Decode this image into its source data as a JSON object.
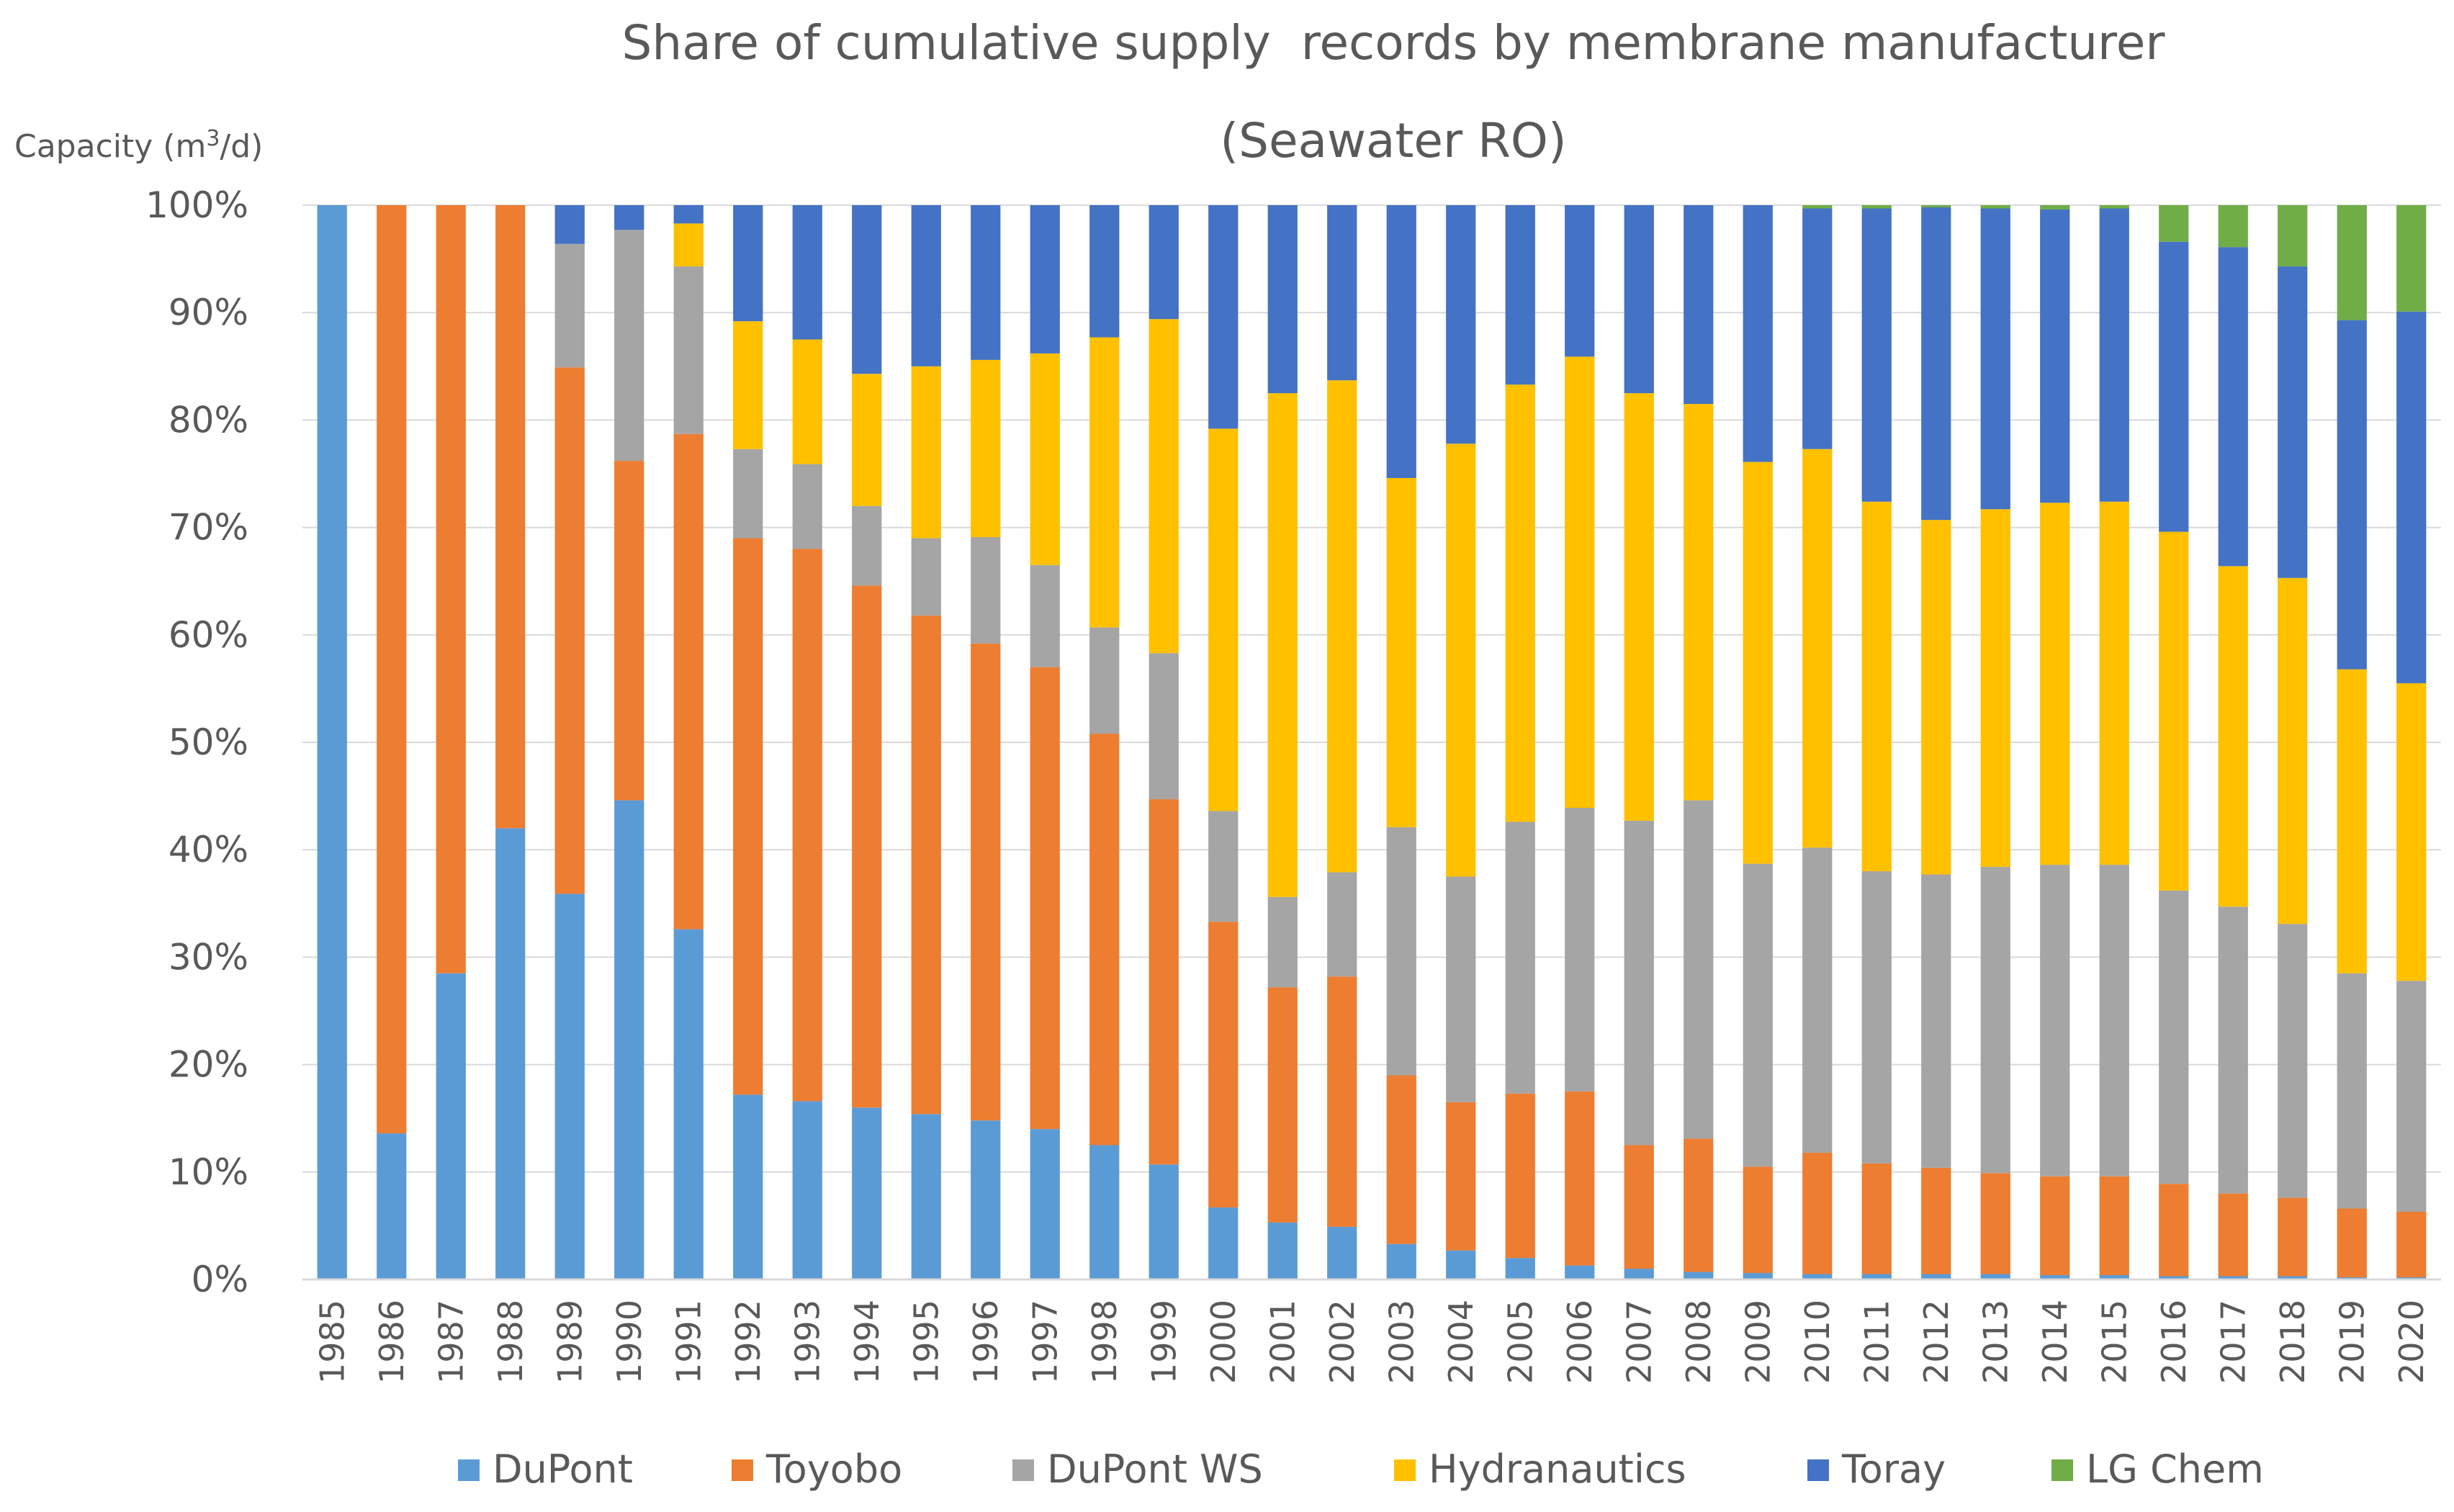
{
  "chart_data": {
    "type": "bar",
    "stacked": true,
    "title": "Share of cumulative supply  records by membrane manufacturer",
    "subtitle": "(Seawater RO)",
    "ylabel": "Capacity (m3/d)",
    "ylabel_main": "Capacity (m",
    "ylabel_sup": "3",
    "ylabel_tail": "/d)",
    "ylim": [
      0,
      100
    ],
    "yticks": [
      "0%",
      "10%",
      "20%",
      "30%",
      "40%",
      "50%",
      "60%",
      "70%",
      "80%",
      "90%",
      "100%"
    ],
    "categories": [
      "1985",
      "1986",
      "1987",
      "1988",
      "1989",
      "1990",
      "1991",
      "1992",
      "1993",
      "1994",
      "1995",
      "1996",
      "1997",
      "1998",
      "1999",
      "2000",
      "2001",
      "2002",
      "2003",
      "2004",
      "2005",
      "2006",
      "2007",
      "2008",
      "2009",
      "2010",
      "2011",
      "2012",
      "2013",
      "2014",
      "2015",
      "2016",
      "2017",
      "2018",
      "2019",
      "2020"
    ],
    "legend_position": "bottom",
    "series": [
      {
        "name": "DuPont",
        "color": "#5B9BD5",
        "values": [
          100,
          13.6,
          28.5,
          42,
          35.9,
          44.6,
          32.6,
          17.2,
          16.6,
          16,
          15.4,
          14.8,
          14,
          12.5,
          10.7,
          6.7,
          5.3,
          4.9,
          3.3,
          2.7,
          2,
          1.3,
          1,
          0.7,
          0.6,
          0.5,
          0.5,
          0.5,
          0.5,
          0.4,
          0.4,
          0.3,
          0.3,
          0.3,
          0.2,
          0.2
        ]
      },
      {
        "name": "Toyobo",
        "color": "#ED7D31",
        "values": [
          0,
          86.4,
          71.5,
          58,
          49,
          31.6,
          46.1,
          51.8,
          51.4,
          48.6,
          46.4,
          44.4,
          43,
          38.3,
          34,
          26.6,
          21.9,
          23.3,
          15.7,
          13.8,
          15.3,
          16.2,
          11.5,
          12.4,
          9.9,
          11.3,
          10.3,
          9.9,
          9.4,
          9.2,
          9.2,
          8.6,
          7.7,
          7.3,
          6.4,
          6.1
        ]
      },
      {
        "name": "DuPont WS",
        "color": "#A5A5A5",
        "values": [
          0,
          0,
          0,
          0,
          11.5,
          21.5,
          15.6,
          8.3,
          7.9,
          7.4,
          7.2,
          9.9,
          9.5,
          9.9,
          13.6,
          10.3,
          8.4,
          9.7,
          23.1,
          21,
          25.3,
          26.4,
          30.2,
          31.5,
          28.2,
          28.4,
          27.2,
          27.3,
          28.5,
          29,
          29,
          27.3,
          26.7,
          25.5,
          21.9,
          21.5
        ]
      },
      {
        "name": "Hydranautics",
        "color": "#FFC000",
        "values": [
          0,
          0,
          0,
          0,
          0,
          0,
          4,
          11.9,
          11.6,
          12.3,
          16,
          16.5,
          19.7,
          27,
          31.1,
          35.6,
          46.9,
          45.8,
          32.5,
          40.3,
          40.7,
          42,
          39.8,
          36.9,
          37.4,
          37.1,
          34.4,
          33,
          33.3,
          33.7,
          33.8,
          33.4,
          31.7,
          32.2,
          28.3,
          27.7
        ]
      },
      {
        "name": "Toray",
        "color": "#4472C4",
        "values": [
          0,
          0,
          0,
          0,
          3.6,
          2.3,
          1.7,
          10.8,
          12.5,
          15.7,
          15,
          14.4,
          13.8,
          12.3,
          10.6,
          20.8,
          17.5,
          16.3,
          25.4,
          22.2,
          16.7,
          14.1,
          17.5,
          18.5,
          23.9,
          22.4,
          27.3,
          29.1,
          28,
          27.3,
          27.3,
          27,
          29.7,
          29,
          32.5,
          34.6
        ]
      },
      {
        "name": "LG Chem",
        "color": "#70AD47",
        "values": [
          0,
          0,
          0,
          0,
          0,
          0,
          0,
          0,
          0,
          0,
          0,
          0,
          0,
          0,
          0,
          0,
          0,
          0,
          0,
          0,
          0,
          0,
          0,
          0,
          0,
          0.3,
          0.3,
          0.2,
          0.3,
          0.4,
          0.3,
          3.4,
          3.9,
          5.7,
          10.7,
          9.9
        ]
      }
    ]
  }
}
